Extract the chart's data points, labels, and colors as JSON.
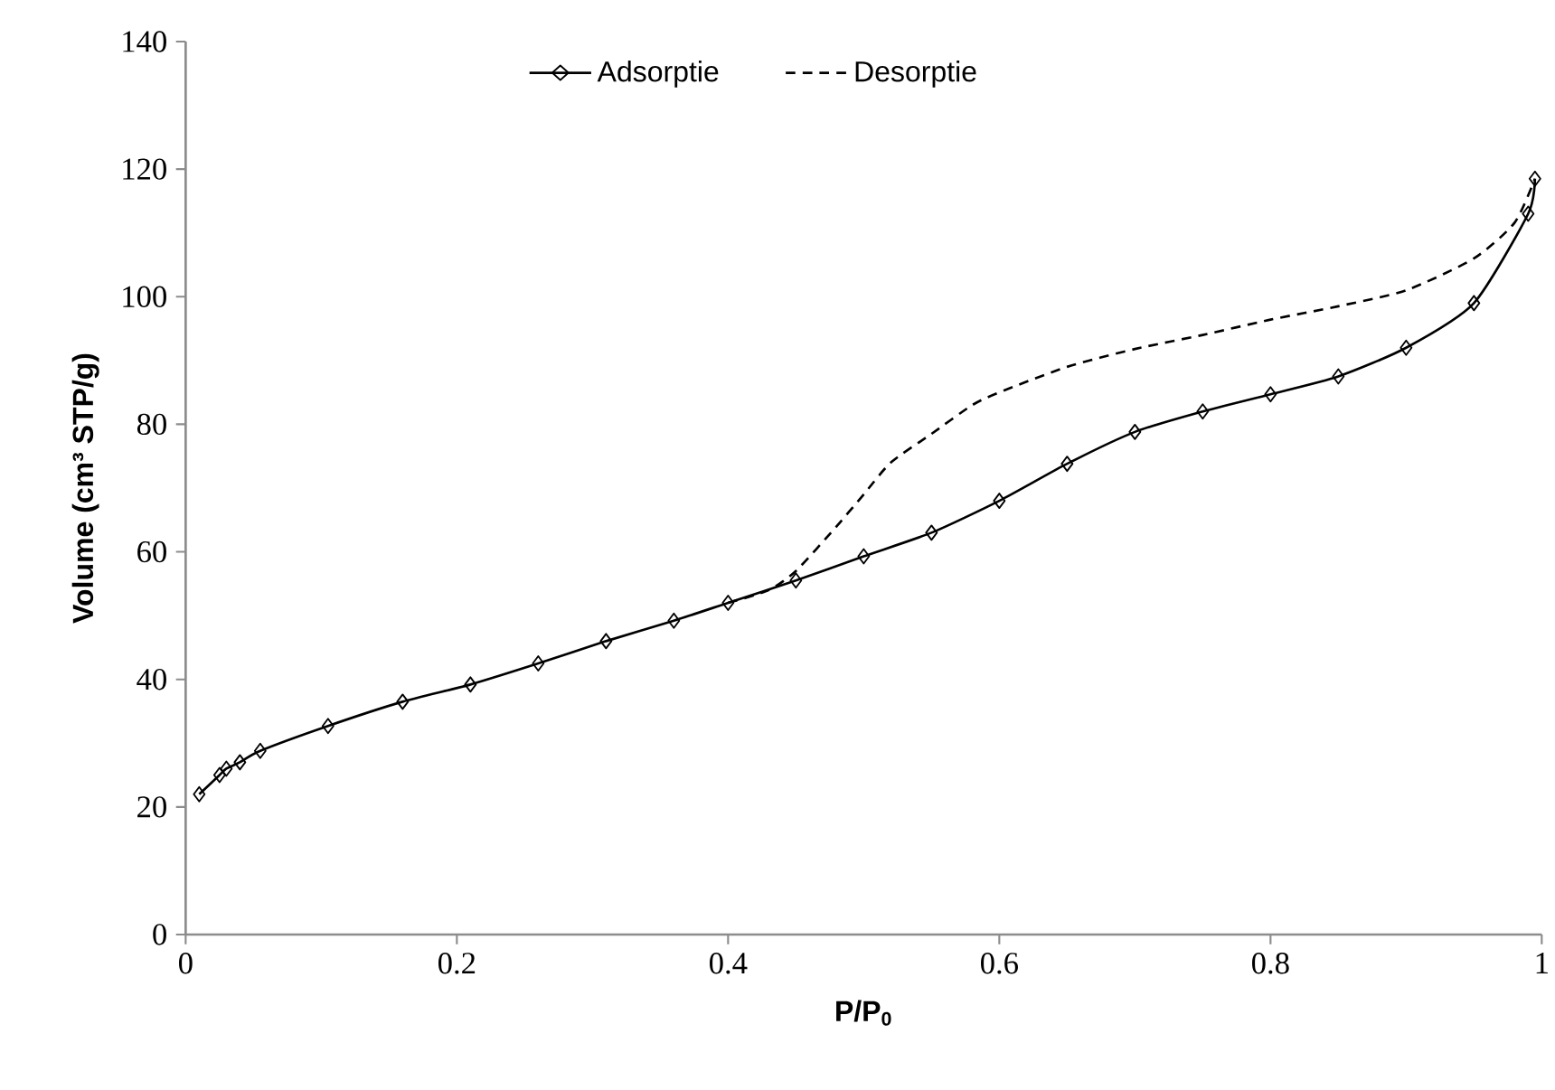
{
  "chart_data": {
    "type": "line",
    "xlabel": "P/P$_{0}$",
    "ylabel": "Volume (cm³ STP/g)",
    "xlim": [
      0,
      1
    ],
    "ylim": [
      0,
      140
    ],
    "xticks": [
      0,
      0.2,
      0.4,
      0.6,
      0.8,
      1
    ],
    "yticks": [
      0,
      20,
      40,
      60,
      80,
      100,
      120,
      140
    ],
    "grid": false,
    "legend": "top",
    "series": [
      {
        "name": "Adsorptie",
        "color": "#000000",
        "marker": "diamond",
        "line_style": "solid",
        "x": [
          0.01,
          0.025,
          0.03,
          0.04,
          0.055,
          0.105,
          0.16,
          0.21,
          0.26,
          0.31,
          0.36,
          0.4,
          0.45,
          0.5,
          0.55,
          0.6,
          0.65,
          0.7,
          0.75,
          0.8,
          0.85,
          0.9,
          0.95,
          0.99,
          0.995
        ],
        "values": [
          22,
          25,
          26,
          27,
          28.8,
          32.7,
          36.5,
          39.2,
          42.5,
          46,
          49.2,
          52,
          55.5,
          59.3,
          63,
          68,
          73.8,
          78.8,
          82,
          84.7,
          87.5,
          92,
          99,
          113,
          118.5
        ]
      },
      {
        "name": "Desorptie",
        "color": "#000000",
        "marker": "none",
        "line_style": "dashed",
        "x": [
          0.4,
          0.43,
          0.45,
          0.48,
          0.5,
          0.52,
          0.55,
          0.58,
          0.6,
          0.65,
          0.7,
          0.75,
          0.8,
          0.85,
          0.9,
          0.95,
          0.98,
          0.995
        ],
        "values": [
          52,
          54,
          57,
          64,
          69,
          74,
          78.5,
          83,
          85,
          89,
          91.8,
          94,
          96.4,
          98.5,
          101,
          106,
          111.6,
          118.5
        ]
      }
    ]
  }
}
